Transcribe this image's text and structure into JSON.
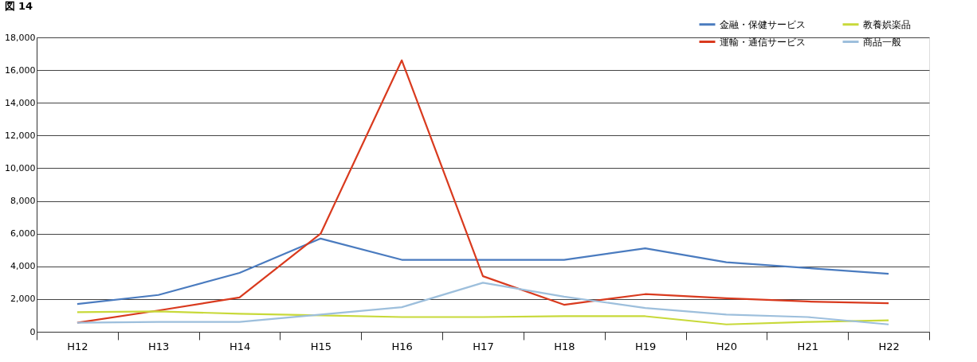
{
  "chart_data": {
    "type": "line",
    "title": "図 14",
    "categories": [
      "H12",
      "H13",
      "H14",
      "H15",
      "H16",
      "H17",
      "H18",
      "H19",
      "H20",
      "H21",
      "H22"
    ],
    "series": [
      {
        "name": "金融・保健サービス",
        "color": "#4a7bbf",
        "values": [
          1700,
          2250,
          3600,
          5700,
          4400,
          4400,
          4400,
          5100,
          4250,
          3900,
          3550
        ]
      },
      {
        "name": "運輸・通信サービス",
        "color": "#d93a1e",
        "values": [
          550,
          1300,
          2100,
          6000,
          16600,
          3400,
          1650,
          2300,
          2050,
          1850,
          1750
        ]
      },
      {
        "name": "教養娯楽品",
        "color": "#c8d93a",
        "values": [
          1200,
          1250,
          1100,
          1000,
          900,
          900,
          950,
          950,
          450,
          600,
          700
        ]
      },
      {
        "name": "商品一般",
        "color": "#9dbfdc",
        "values": [
          550,
          600,
          600,
          1050,
          1500,
          3000,
          2150,
          1450,
          1050,
          900,
          450
        ]
      }
    ],
    "ylim": [
      0,
      18000
    ],
    "yticks": [
      0,
      {
        "value": 2000,
        "label": "2,000"
      },
      {
        "value": 4000,
        "label": "4,000"
      },
      {
        "value": 6000,
        "label": "6,000"
      },
      {
        "value": 8000,
        "label": "8,000"
      },
      {
        "value": 10000,
        "label": "10,000"
      },
      {
        "value": 12000,
        "label": "12,000"
      },
      {
        "value": 14000,
        "label": "14,000"
      },
      {
        "value": 16000,
        "label": "16,000"
      },
      {
        "value": 18000,
        "label": "18,000"
      }
    ],
    "grid": "y",
    "legend": "top right",
    "marker": "none",
    "line_style": "solid"
  }
}
